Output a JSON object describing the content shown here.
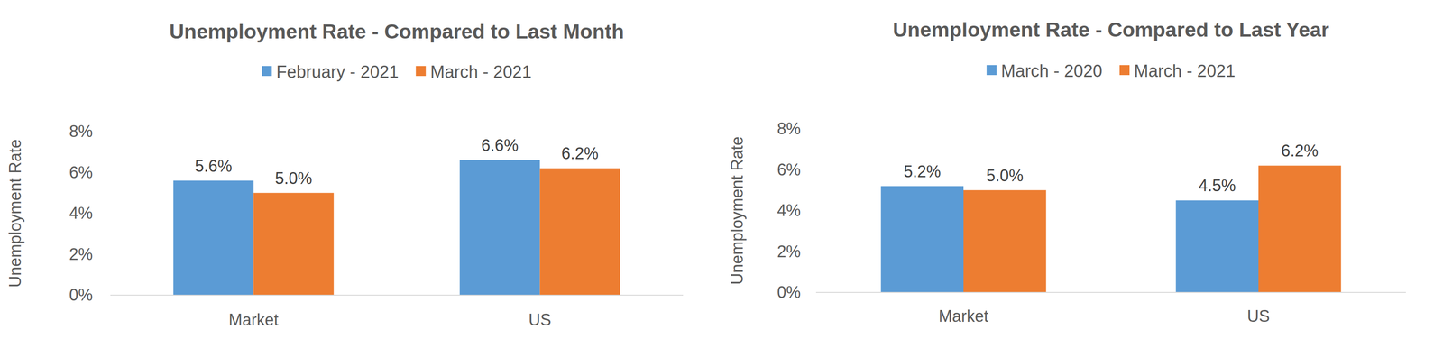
{
  "chart_data": [
    {
      "type": "bar",
      "title": "Unemployment Rate - Compared to Last Month",
      "y_label": "Unemployment Rate",
      "categories": [
        "Market",
        "US"
      ],
      "series": [
        {
          "name": "February - 2021",
          "color": "#5b9bd5",
          "values": [
            5.6,
            6.6
          ],
          "value_labels": [
            "5.6%",
            "6.6%"
          ]
        },
        {
          "name": "March - 2021",
          "color": "#ed7d31",
          "values": [
            5.0,
            6.2
          ],
          "value_labels": [
            "5.0%",
            "6.2%"
          ]
        }
      ],
      "ylim": [
        0,
        8
      ],
      "yticks": [
        {
          "value": 0,
          "label": "0%"
        },
        {
          "value": 2,
          "label": "2%"
        },
        {
          "value": 4,
          "label": "4%"
        },
        {
          "value": 6,
          "label": "6%"
        },
        {
          "value": 8,
          "label": "8%"
        }
      ],
      "grid": false,
      "legend": "top",
      "data_labels": true
    },
    {
      "type": "bar",
      "title": "Unemployment Rate - Compared to Last Year",
      "y_label": "Unemployment Rate",
      "categories": [
        "Market",
        "US"
      ],
      "series": [
        {
          "name": "March - 2020",
          "color": "#5b9bd5",
          "values": [
            5.2,
            4.5
          ],
          "value_labels": [
            "5.2%",
            "4.5%"
          ]
        },
        {
          "name": "March - 2021",
          "color": "#ed7d31",
          "values": [
            5.0,
            6.2
          ],
          "value_labels": [
            "5.0%",
            "6.2%"
          ]
        }
      ],
      "ylim": [
        0,
        8
      ],
      "yticks": [
        {
          "value": 0,
          "label": "0%"
        },
        {
          "value": 2,
          "label": "2%"
        },
        {
          "value": 4,
          "label": "4%"
        },
        {
          "value": 6,
          "label": "6%"
        },
        {
          "value": 8,
          "label": "8%"
        }
      ],
      "grid": false,
      "legend": "top",
      "data_labels": true
    }
  ]
}
